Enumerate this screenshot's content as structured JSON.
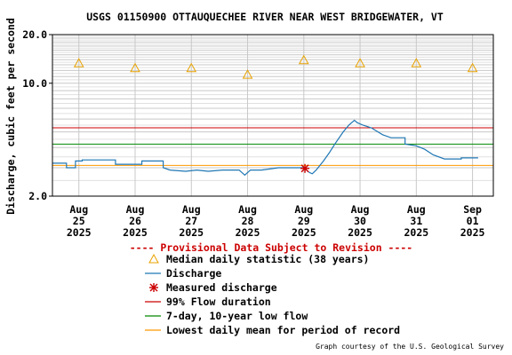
{
  "chart_data": {
    "type": "line",
    "title": "USGS 01150900 OTTAUQUECHEE RIVER NEAR WEST BRIDGEWATER, VT",
    "ylabel": "Discharge, cubic feet per second",
    "xlabel": "",
    "y_scale": "log",
    "ylim": [
      2.0,
      20.0
    ],
    "y_ticks": [
      "2.0",
      "10.0",
      "20.0"
    ],
    "x_ticks": [
      {
        "lines": [
          "Aug",
          "25",
          "2025"
        ]
      },
      {
        "lines": [
          "Aug",
          "26",
          "2025"
        ]
      },
      {
        "lines": [
          "Aug",
          "27",
          "2025"
        ]
      },
      {
        "lines": [
          "Aug",
          "28",
          "2025"
        ]
      },
      {
        "lines": [
          "Aug",
          "29",
          "2025"
        ]
      },
      {
        "lines": [
          "Aug",
          "30",
          "2025"
        ]
      },
      {
        "lines": [
          "Aug",
          "31",
          "2025"
        ]
      },
      {
        "lines": [
          "Sep",
          "01",
          "2025"
        ]
      }
    ],
    "xlim_days": [
      -0.47,
      7.37
    ],
    "grid": true,
    "provisional_note": "---- Provisional Data Subject to Revision ----",
    "credit": "Graph courtesy of the U.S. Geological Survey",
    "colors": {
      "median": "#e8a200",
      "discharge": "#1f77b4",
      "measured": "#cc0000",
      "flow99": "#cc0000",
      "low7q10": "#008800",
      "lowest_mean": "#ff9900",
      "provisional": "#cc0000"
    },
    "median_daily": [
      {
        "day": 0,
        "value": 13.3
      },
      {
        "day": 1,
        "value": 12.4
      },
      {
        "day": 2,
        "value": 12.4
      },
      {
        "day": 3,
        "value": 11.3
      },
      {
        "day": 4,
        "value": 13.9
      },
      {
        "day": 5,
        "value": 13.3
      },
      {
        "day": 6,
        "value": 13.3
      },
      {
        "day": 7,
        "value": 12.4
      }
    ],
    "discharge": [
      [
        -0.47,
        3.2
      ],
      [
        -0.22,
        3.2
      ],
      [
        -0.22,
        3.0
      ],
      [
        -0.06,
        3.0
      ],
      [
        -0.06,
        3.3
      ],
      [
        0.06,
        3.3
      ],
      [
        0.06,
        3.35
      ],
      [
        0.65,
        3.35
      ],
      [
        0.65,
        3.15
      ],
      [
        1.12,
        3.15
      ],
      [
        1.12,
        3.3
      ],
      [
        1.5,
        3.3
      ],
      [
        1.5,
        3.0
      ],
      [
        1.62,
        2.9
      ],
      [
        1.9,
        2.85
      ],
      [
        2.1,
        2.9
      ],
      [
        2.3,
        2.85
      ],
      [
        2.55,
        2.9
      ],
      [
        2.85,
        2.9
      ],
      [
        2.95,
        2.7
      ],
      [
        3.05,
        2.9
      ],
      [
        3.25,
        2.9
      ],
      [
        3.55,
        3.0
      ],
      [
        3.75,
        3.0
      ],
      [
        4.0,
        3.0
      ],
      [
        4.1,
        2.8
      ],
      [
        4.15,
        2.75
      ],
      [
        4.22,
        2.9
      ],
      [
        4.35,
        3.3
      ],
      [
        4.45,
        3.7
      ],
      [
        4.55,
        4.2
      ],
      [
        4.7,
        5.0
      ],
      [
        4.8,
        5.5
      ],
      [
        4.9,
        5.9
      ],
      [
        4.95,
        5.7
      ],
      [
        5.05,
        5.5
      ],
      [
        5.2,
        5.3
      ],
      [
        5.4,
        4.8
      ],
      [
        5.55,
        4.6
      ],
      [
        5.8,
        4.6
      ],
      [
        5.8,
        4.2
      ],
      [
        6.0,
        4.1
      ],
      [
        6.15,
        3.9
      ],
      [
        6.3,
        3.6
      ],
      [
        6.5,
        3.4
      ],
      [
        6.8,
        3.4
      ],
      [
        6.8,
        3.45
      ],
      [
        7.1,
        3.45
      ]
    ],
    "measured_discharge": [
      {
        "day": 4.02,
        "value": 2.97
      }
    ],
    "flow_99_duration": 5.3,
    "low_7day_10year": 4.2,
    "lowest_daily_mean": 3.1,
    "legend": [
      {
        "key": "median",
        "label": "Median daily statistic (38 years)"
      },
      {
        "key": "discharge",
        "label": "Discharge"
      },
      {
        "key": "measured",
        "label": "Measured discharge"
      },
      {
        "key": "flow99",
        "label": "99% Flow duration"
      },
      {
        "key": "low7q10",
        "label": "7-day, 10-year low flow"
      },
      {
        "key": "lowest_mean",
        "label": "Lowest daily mean for period of record"
      }
    ]
  }
}
